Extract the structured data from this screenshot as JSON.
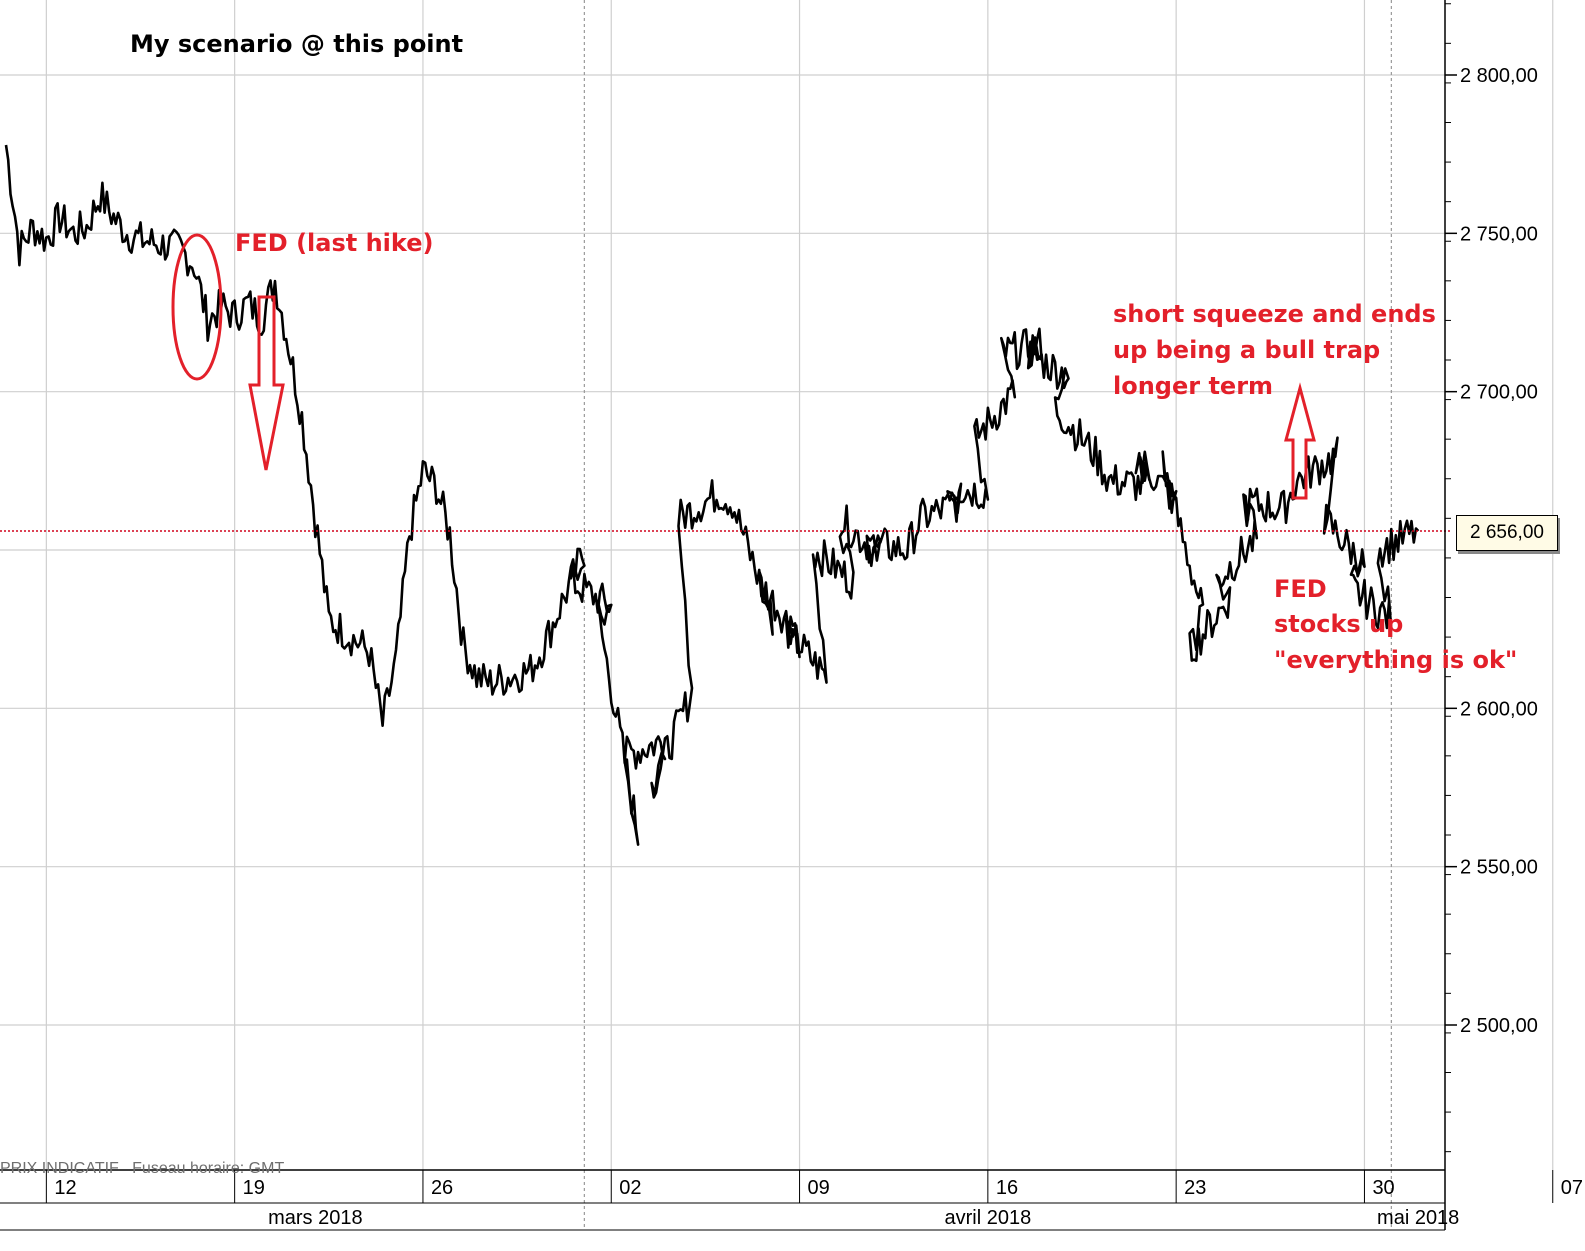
{
  "chart_data": {
    "type": "line",
    "title": "My scenario @ this point",
    "xlabel": "",
    "ylabel": "",
    "ylim": [
      2455,
      2825
    ],
    "x_ticks": [
      {
        "label": "12",
        "date": "2018-03-12"
      },
      {
        "label": "19",
        "date": "2018-03-19"
      },
      {
        "label": "26",
        "date": "2018-03-26"
      },
      {
        "label": "02",
        "date": "2018-04-02"
      },
      {
        "label": "09",
        "date": "2018-04-09"
      },
      {
        "label": "16",
        "date": "2018-04-16"
      },
      {
        "label": "23",
        "date": "2018-04-23"
      },
      {
        "label": "30",
        "date": "2018-04-30"
      },
      {
        "label": "07",
        "date": "2018-05-07"
      }
    ],
    "month_labels": [
      {
        "label": "mars 2018",
        "start": "2018-03-12",
        "end": "2018-04-01"
      },
      {
        "label": "avril 2018",
        "start": "2018-04-01",
        "end": "2018-05-01"
      },
      {
        "label": "mai 2018",
        "start": "2018-05-01",
        "end": "2018-05-10"
      }
    ],
    "y_ticks": [
      {
        "value": 2800,
        "label": "2 800,00"
      },
      {
        "value": 2750,
        "label": "2 750,00"
      },
      {
        "value": 2700,
        "label": "2 700,00"
      },
      {
        "value": 2600,
        "label": "2 600,00"
      },
      {
        "value": 2550,
        "label": "2 550,00"
      },
      {
        "value": 2500,
        "label": "2 500,00"
      }
    ],
    "last_price": {
      "value": 2656,
      "label": "2 656,00"
    },
    "grid": true,
    "series": [
      {
        "x": [
          "2018-03-12",
          "2018-03-12",
          "2018-03-13",
          "2018-03-13",
          "2018-03-14",
          "2018-03-14",
          "2018-03-15",
          "2018-03-15",
          "2018-03-16",
          "2018-03-16",
          "2018-03-17",
          "2018-03-18",
          "2018-03-19",
          "2018-03-19",
          "2018-03-20",
          "2018-03-20",
          "2018-03-21",
          "2018-03-21",
          "2018-03-22",
          "2018-03-22",
          "2018-03-23",
          "2018-03-23",
          "2018-03-24",
          "2018-03-25",
          "2018-03-26",
          "2018-03-26",
          "2018-03-27",
          "2018-03-27",
          "2018-03-28",
          "2018-03-28",
          "2018-03-29",
          "2018-03-29",
          "2018-03-30",
          "2018-03-31",
          "2018-04-01",
          "2018-04-02",
          "2018-04-02",
          "2018-04-03",
          "2018-04-03",
          "2018-04-04",
          "2018-04-04",
          "2018-04-05",
          "2018-04-05",
          "2018-04-06",
          "2018-04-06",
          "2018-04-07",
          "2018-04-08",
          "2018-04-09",
          "2018-04-09",
          "2018-04-10",
          "2018-04-10",
          "2018-04-11",
          "2018-04-11",
          "2018-04-12",
          "2018-04-12",
          "2018-04-13",
          "2018-04-13",
          "2018-04-14",
          "2018-04-15",
          "2018-04-16",
          "2018-04-16",
          "2018-04-17",
          "2018-04-17",
          "2018-04-18",
          "2018-04-18",
          "2018-04-19",
          "2018-04-19",
          "2018-04-20",
          "2018-04-20",
          "2018-04-21",
          "2018-04-22",
          "2018-04-23",
          "2018-04-23",
          "2018-04-24",
          "2018-04-24",
          "2018-04-25",
          "2018-04-25",
          "2018-04-26",
          "2018-04-26",
          "2018-04-27",
          "2018-04-27",
          "2018-04-28",
          "2018-04-29",
          "2018-04-30",
          "2018-04-30",
          "2018-05-01",
          "2018-05-01",
          "2018-05-02",
          "2018-05-02",
          "2018-05-03"
        ],
        "values": [
          2778,
          2745,
          2752,
          2748,
          2755,
          2750,
          2752,
          2762,
          2755,
          2750,
          2748,
          2745,
          2740,
          2722,
          2727,
          2724,
          2728,
          2723,
          2735,
          2715,
          2692,
          2660,
          2628,
          2618,
          2595,
          2615,
          2655,
          2675,
          2670,
          2655,
          2620,
          2610,
          2608,
          2612,
          2620,
          2650,
          2640,
          2632,
          2630,
          2560,
          2585,
          2590,
          2575,
          2605,
          2660,
          2668,
          2665,
          2628,
          2640,
          2622,
          2625,
          2610,
          2650,
          2640,
          2660,
          2648,
          2652,
          2650,
          2660,
          2665,
          2670,
          2668,
          2685,
          2700,
          2712,
          2715,
          2712,
          2705,
          2695,
          2680,
          2672,
          2670,
          2680,
          2665,
          2677,
          2630,
          2618,
          2635,
          2640,
          2654,
          2665,
          2663,
          2672,
          2680,
          2660,
          2645,
          2638,
          2628,
          2650,
          2656
        ]
      }
    ]
  },
  "annotations": {
    "scenario": "My scenario @ this point",
    "fed_last_hike": "FED (last hike)",
    "squeeze_line1": "short squeeze and ends",
    "squeeze_line2": "up being a bull trap",
    "squeeze_line3": "longer term",
    "fed_line1": "FED",
    "fed_line2": "stocks up",
    "fed_line3": "\"everything is ok\""
  },
  "footer_note": "PRIX INDICATIF   Fuseau horaire: GMT",
  "colors": {
    "annotation": "#e3202a",
    "price_line": "#000000",
    "last_price_line": "#d0021b",
    "grid": "#cfcfcf"
  }
}
